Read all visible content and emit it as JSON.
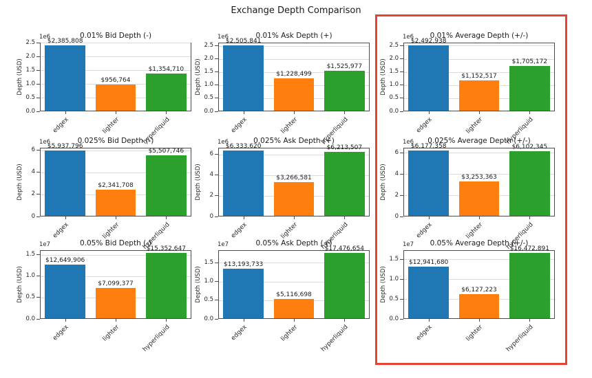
{
  "figure": {
    "title": "Exchange Depth Comparison",
    "ylabel": "Depth (USD)",
    "categories": [
      "edgex",
      "lighter",
      "hyperliquid"
    ],
    "bar_colors": [
      "#1f77b4",
      "#ff7f0e",
      "#2ca02c"
    ],
    "highlight_box_color": "#e64330"
  },
  "chart_data": [
    {
      "type": "bar",
      "id": "bid-001",
      "title": "0.01% Bid Depth (-)",
      "ylabel": "Depth (USD)",
      "scale_label": "1e6",
      "categories": [
        "edgex",
        "lighter",
        "hyperliquid"
      ],
      "values": [
        2385808,
        956764,
        1354710
      ],
      "value_labels": [
        "$2,385,808",
        "$956,764",
        "$1,354,710"
      ],
      "ytick_values": [
        0,
        500000,
        1000000,
        1500000,
        2000000,
        2500000
      ],
      "ytick_labels": [
        "0.0",
        "0.5",
        "1.0",
        "1.5",
        "2.0",
        "2.5"
      ],
      "ylim": [
        0,
        2505098
      ],
      "grid": true,
      "highlighted": false
    },
    {
      "type": "bar",
      "id": "ask-001",
      "title": "0.01% Ask Depth (+)",
      "ylabel": "Depth (USD)",
      "scale_label": "1e6",
      "categories": [
        "edgex",
        "lighter",
        "hyperliquid"
      ],
      "values": [
        2505841,
        1228499,
        1525977
      ],
      "value_labels": [
        "$2,505,841",
        "$1,228,499",
        "$1,525,977"
      ],
      "ytick_values": [
        0,
        500000,
        1000000,
        1500000,
        2000000,
        2500000
      ],
      "ytick_labels": [
        "0.0",
        "0.5",
        "1.0",
        "1.5",
        "2.0",
        "2.5"
      ],
      "ylim": [
        0,
        2631133
      ],
      "grid": true,
      "highlighted": false
    },
    {
      "type": "bar",
      "id": "avg-001",
      "title": "0.01% Average Depth (+/-)",
      "ylabel": "Depth (USD)",
      "scale_label": "1e6",
      "categories": [
        "edgex",
        "lighter",
        "hyperliquid"
      ],
      "values": [
        2492938,
        1152517,
        1705172
      ],
      "value_labels": [
        "$2,492,938",
        "$1,152,517",
        "$1,705,172"
      ],
      "ytick_values": [
        0,
        500000,
        1000000,
        1500000,
        2000000,
        2500000
      ],
      "ytick_labels": [
        "0.0",
        "0.5",
        "1.0",
        "1.5",
        "2.0",
        "2.5"
      ],
      "ylim": [
        0,
        2617585
      ],
      "grid": true,
      "highlighted": true
    },
    {
      "type": "bar",
      "id": "bid-0025",
      "title": "0.025% Bid Depth (-)",
      "ylabel": "Depth (USD)",
      "scale_label": "1e6",
      "categories": [
        "edgex",
        "lighter",
        "hyperliquid"
      ],
      "values": [
        5937796,
        2341708,
        5507746
      ],
      "value_labels": [
        "$5,937,796",
        "$2,341,708",
        "$5,507,746"
      ],
      "ytick_values": [
        0,
        2000000,
        4000000,
        6000000
      ],
      "ytick_labels": [
        "0",
        "2",
        "4",
        "6"
      ],
      "ylim": [
        0,
        6234686
      ],
      "grid": true,
      "highlighted": false
    },
    {
      "type": "bar",
      "id": "ask-0025",
      "title": "0.025% Ask Depth (+)",
      "ylabel": "Depth (USD)",
      "scale_label": "1e6",
      "categories": [
        "edgex",
        "lighter",
        "hyperliquid"
      ],
      "values": [
        6333620,
        3266581,
        6213507
      ],
      "value_labels": [
        "$6,333,620",
        "$3,266,581",
        "$6,213,507"
      ],
      "ytick_values": [
        0,
        2000000,
        4000000,
        6000000
      ],
      "ytick_labels": [
        "0",
        "2",
        "4",
        "6"
      ],
      "ylim": [
        0,
        6650301
      ],
      "grid": true,
      "highlighted": false
    },
    {
      "type": "bar",
      "id": "avg-0025",
      "title": "0.025% Average Depth (+/-)",
      "ylabel": "Depth (USD)",
      "scale_label": "1e6",
      "categories": [
        "edgex",
        "lighter",
        "hyperliquid"
      ],
      "values": [
        6177358,
        3253363,
        6102345
      ],
      "value_labels": [
        "$6,177,358",
        "$3,253,363",
        "$6,102,345"
      ],
      "ytick_values": [
        0,
        2000000,
        4000000,
        6000000
      ],
      "ytick_labels": [
        "0",
        "2",
        "4",
        "6"
      ],
      "ylim": [
        0,
        6486226
      ],
      "grid": true,
      "highlighted": true
    },
    {
      "type": "bar",
      "id": "bid-005",
      "title": "0.05% Bid Depth (-)",
      "ylabel": "Depth (USD)",
      "scale_label": "1e7",
      "categories": [
        "edgex",
        "lighter",
        "hyperliquid"
      ],
      "values": [
        12649906,
        7099377,
        15352647
      ],
      "value_labels": [
        "$12,649,906",
        "$7,099,377",
        "$15,352,647"
      ],
      "ytick_values": [
        0,
        5000000,
        10000000,
        15000000
      ],
      "ytick_labels": [
        "0.0",
        "0.5",
        "1.0",
        "1.5"
      ],
      "ylim": [
        0,
        16120279
      ],
      "grid": true,
      "highlighted": false
    },
    {
      "type": "bar",
      "id": "ask-005",
      "title": "0.05% Ask Depth (+)",
      "ylabel": "Depth (USD)",
      "scale_label": "1e7",
      "categories": [
        "edgex",
        "lighter",
        "hyperliquid"
      ],
      "values": [
        13193733,
        5116698,
        17476654
      ],
      "value_labels": [
        "$13,193,733",
        "$5,116,698",
        "$17,476,654"
      ],
      "ytick_values": [
        0,
        5000000,
        10000000,
        15000000
      ],
      "ytick_labels": [
        "0.0",
        "0.5",
        "1.0",
        "1.5"
      ],
      "ylim": [
        0,
        18350487
      ],
      "grid": true,
      "highlighted": false
    },
    {
      "type": "bar",
      "id": "avg-005",
      "title": "0.05% Average Depth (+/-)",
      "ylabel": "Depth (USD)",
      "scale_label": "1e7",
      "categories": [
        "edgex",
        "lighter",
        "hyperliquid"
      ],
      "values": [
        12941680,
        6127223,
        16472891
      ],
      "value_labels": [
        "$12,941,680",
        "$6,127,223",
        "$16,472,891"
      ],
      "ytick_values": [
        0,
        5000000,
        10000000,
        15000000
      ],
      "ytick_labels": [
        "0.0",
        "0.5",
        "1.0",
        "1.5"
      ],
      "ylim": [
        0,
        17296536
      ],
      "grid": true,
      "highlighted": true
    }
  ]
}
